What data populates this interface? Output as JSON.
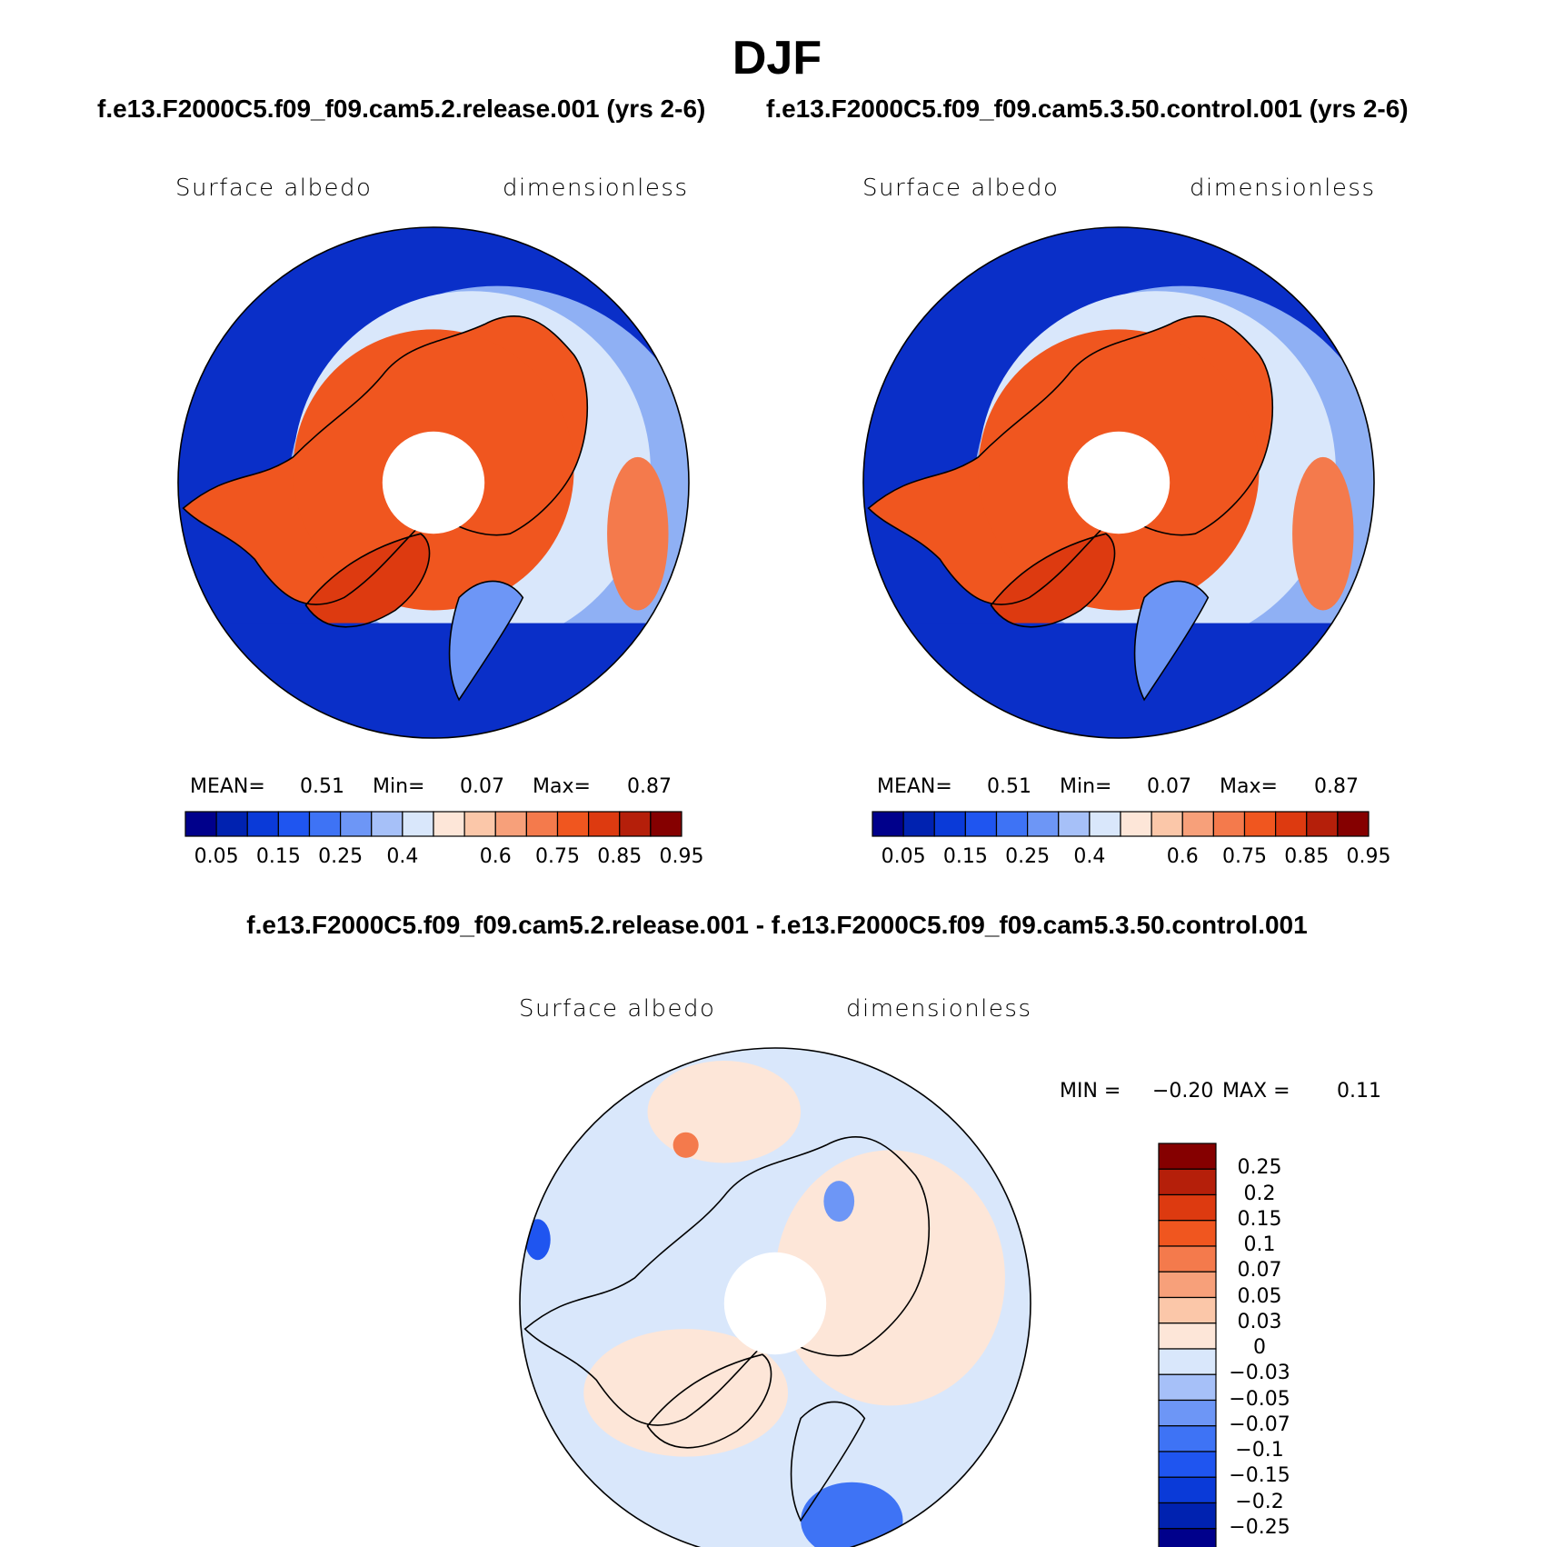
{
  "title": "DJF",
  "panels": [
    {
      "case_title": "f.e13.F2000C5.f09_f09.cam5.2.release.001 (yrs 2-6)",
      "variable": "Surface albedo",
      "units": "dimensionless",
      "stats": {
        "mean_label": "MEAN=",
        "mean": "0.51",
        "min_label": "Min=",
        "min": "0.07",
        "max_label": "Max=",
        "max": "0.87"
      }
    },
    {
      "case_title": "f.e13.F2000C5.f09_f09.cam5.3.50.control.001 (yrs 2-6)",
      "variable": "Surface albedo",
      "units": "dimensionless",
      "stats": {
        "mean_label": "MEAN=",
        "mean": "0.51",
        "min_label": "Min=",
        "min": "0.07",
        "max_label": "Max=",
        "max": "0.87"
      }
    }
  ],
  "difference": {
    "title": "f.e13.F2000C5.f09_f09.cam5.2.release.001 - f.e13.F2000C5.f09_f09.cam5.3.50.control.001",
    "variable": "Surface albedo",
    "units": "dimensionless",
    "min_label": "MIN =",
    "min": "−0.20",
    "max_label": "MAX =",
    "max": "0.11"
  },
  "colorbar_abs": {
    "colors": [
      "#00008b",
      "#0022b0",
      "#0a3ad8",
      "#1f55f0",
      "#3e73f5",
      "#6d96f6",
      "#a6c0f8",
      "#d9e7fb",
      "#fde6d8",
      "#fbc7a9",
      "#f7a07a",
      "#f47a4c",
      "#f0561f",
      "#dd3a10",
      "#b51f0a",
      "#850000"
    ],
    "tick_labels": [
      "0.05",
      "0.15",
      "0.25",
      "0.4",
      "0.6",
      "0.75",
      "0.85",
      "0.95"
    ]
  },
  "colorbar_diff": {
    "colors": [
      "#850000",
      "#b51f0a",
      "#dd3a10",
      "#f0561f",
      "#f47a4c",
      "#f7a07a",
      "#fbc7a9",
      "#fde6d8",
      "#d9e7fb",
      "#a6c0f8",
      "#6d96f6",
      "#3e73f5",
      "#1f55f0",
      "#0a3ad8",
      "#0022b0",
      "#00008b"
    ],
    "tick_labels": [
      "0.25",
      "0.2",
      "0.15",
      "0.1",
      "0.07",
      "0.05",
      "0.03",
      "0",
      "−0.03",
      "−0.05",
      "−0.07",
      "−0.1",
      "−0.15",
      "−0.2",
      "−0.25"
    ]
  },
  "colors": {
    "ocean_low": "#0a2fc8",
    "ice_high": "#f0561f",
    "mid": "#d9e7fb",
    "diff_bg": "#d9e7fb",
    "diff_pos": "#fde6d8"
  }
}
